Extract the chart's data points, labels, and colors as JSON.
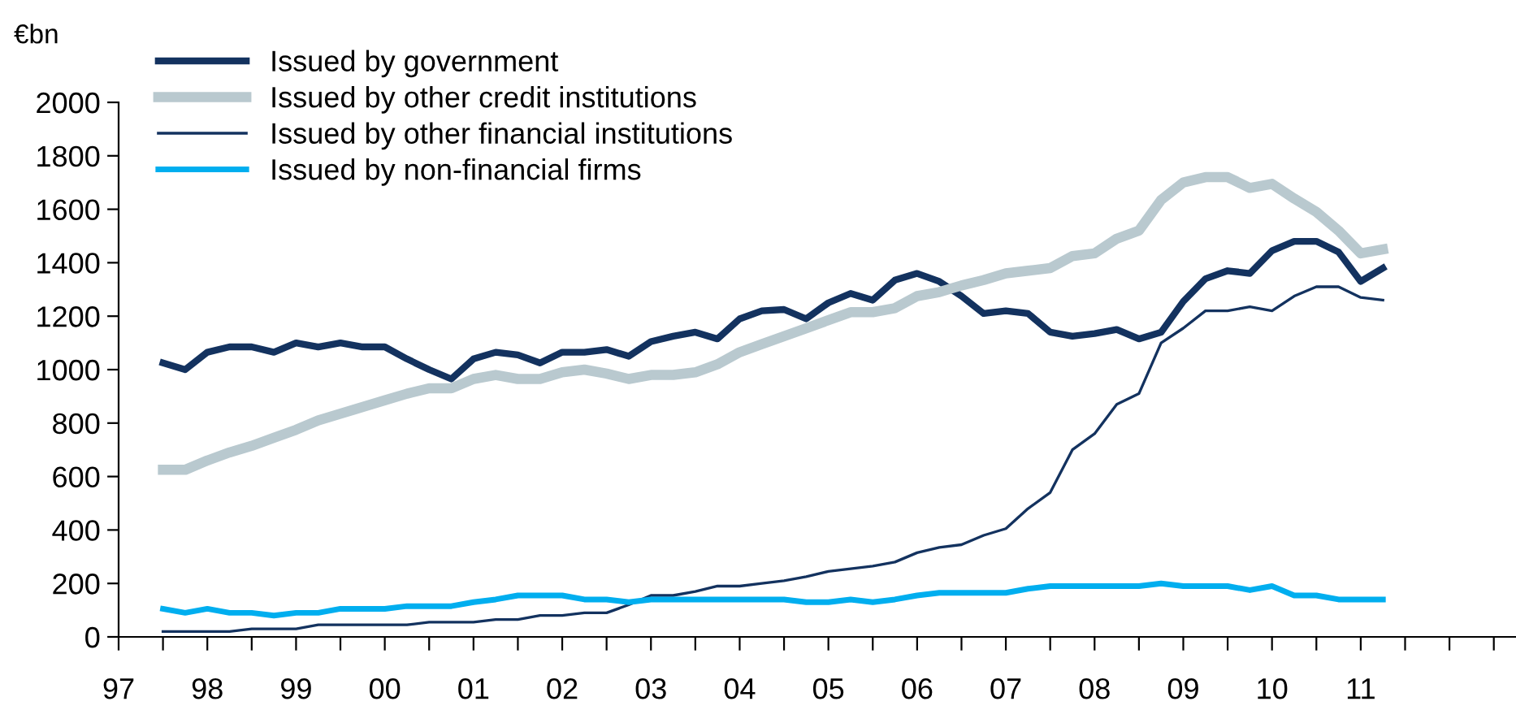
{
  "chart_data": {
    "type": "line",
    "ylabel": "€bn",
    "x": [
      1997.5,
      1997.75,
      1998,
      1998.25,
      1998.5,
      1998.75,
      1999,
      1999.25,
      1999.5,
      1999.75,
      2000,
      2000.25,
      2000.5,
      2000.75,
      2001,
      2001.25,
      2001.5,
      2001.75,
      2002,
      2002.25,
      2002.5,
      2002.75,
      2003,
      2003.25,
      2003.5,
      2003.75,
      2004,
      2004.25,
      2004.5,
      2004.75,
      2005,
      2005.25,
      2005.5,
      2005.75,
      2006,
      2006.25,
      2006.5,
      2006.75,
      2007,
      2007.25,
      2007.5,
      2007.75,
      2008,
      2008.25,
      2008.5,
      2008.75,
      2009,
      2009.25,
      2009.5,
      2009.75,
      2010,
      2010.25,
      2010.5,
      2010.75,
      2011,
      2011.25
    ],
    "series": [
      {
        "name": "Issued by government",
        "color": "#13325f",
        "values": [
          1025,
          1000,
          1065,
          1085,
          1085,
          1065,
          1100,
          1085,
          1100,
          1085,
          1085,
          1040,
          1000,
          965,
          1040,
          1065,
          1055,
          1025,
          1065,
          1065,
          1075,
          1050,
          1105,
          1125,
          1140,
          1115,
          1190,
          1220,
          1225,
          1190,
          1250,
          1285,
          1260,
          1335,
          1360,
          1330,
          1275,
          1210,
          1220,
          1210,
          1140,
          1125,
          1135,
          1150,
          1115,
          1140,
          1255,
          1340,
          1370,
          1360,
          1445,
          1480,
          1480,
          1440,
          1330,
          1380
        ]
      },
      {
        "name": "Issued by other credit institutions",
        "color": "#b9c9cf",
        "values": [
          625,
          625,
          660,
          690,
          715,
          745,
          775,
          810,
          835,
          860,
          885,
          910,
          930,
          930,
          965,
          980,
          965,
          965,
          990,
          1000,
          985,
          965,
          980,
          980,
          990,
          1020,
          1065,
          1095,
          1125,
          1155,
          1185,
          1215,
          1215,
          1230,
          1275,
          1290,
          1315,
          1335,
          1360,
          1370,
          1380,
          1425,
          1435,
          1490,
          1520,
          1635,
          1700,
          1720,
          1720,
          1680,
          1695,
          1640,
          1590,
          1520,
          1435,
          1450
        ]
      },
      {
        "name": "Issued by other financial institutions",
        "color": "#13325f",
        "values": [
          20,
          20,
          20,
          20,
          30,
          30,
          30,
          45,
          45,
          45,
          45,
          45,
          55,
          55,
          55,
          65,
          65,
          80,
          80,
          90,
          90,
          120,
          155,
          155,
          170,
          190,
          190,
          200,
          210,
          225,
          245,
          255,
          265,
          280,
          315,
          335,
          345,
          380,
          405,
          480,
          540,
          700,
          760,
          870,
          910,
          1100,
          1155,
          1220,
          1220,
          1235,
          1220,
          1275,
          1310,
          1310,
          1270,
          1260
        ]
      },
      {
        "name": "Issued by non-financial firms",
        "color": "#00aeef",
        "values": [
          105,
          90,
          105,
          90,
          90,
          80,
          90,
          90,
          105,
          105,
          105,
          115,
          115,
          115,
          130,
          140,
          155,
          155,
          155,
          140,
          140,
          130,
          140,
          140,
          140,
          140,
          140,
          140,
          140,
          130,
          130,
          140,
          130,
          140,
          155,
          165,
          165,
          165,
          165,
          180,
          190,
          190,
          190,
          190,
          190,
          200,
          190,
          190,
          190,
          175,
          190,
          155,
          155,
          140,
          140,
          140
        ]
      }
    ],
    "xlim": [
      1997,
      2012.75
    ],
    "xticks": [
      {
        "value": 1997,
        "label": "97"
      },
      {
        "value": 1997.5,
        "label": null
      },
      {
        "value": 1998,
        "label": "98"
      },
      {
        "value": 1998.5,
        "label": null
      },
      {
        "value": 1999,
        "label": "99"
      },
      {
        "value": 1999.5,
        "label": null
      },
      {
        "value": 2000,
        "label": "00"
      },
      {
        "value": 2000.5,
        "label": null
      },
      {
        "value": 2001,
        "label": "01"
      },
      {
        "value": 2001.5,
        "label": null
      },
      {
        "value": 2002,
        "label": "02"
      },
      {
        "value": 2002.5,
        "label": null
      },
      {
        "value": 2003,
        "label": "03"
      },
      {
        "value": 2003.5,
        "label": null
      },
      {
        "value": 2004,
        "label": "04"
      },
      {
        "value": 2004.5,
        "label": null
      },
      {
        "value": 2005,
        "label": "05"
      },
      {
        "value": 2005.5,
        "label": null
      },
      {
        "value": 2006,
        "label": "06"
      },
      {
        "value": 2006.5,
        "label": null
      },
      {
        "value": 2007,
        "label": "07"
      },
      {
        "value": 2007.5,
        "label": null
      },
      {
        "value": 2008,
        "label": "08"
      },
      {
        "value": 2008.5,
        "label": null
      },
      {
        "value": 2009,
        "label": "09"
      },
      {
        "value": 2009.5,
        "label": null
      },
      {
        "value": 2010,
        "label": "10"
      },
      {
        "value": 2010.5,
        "label": null
      },
      {
        "value": 2011,
        "label": "11"
      },
      {
        "value": 2011.5,
        "label": null
      },
      {
        "value": 2012,
        "label": null
      },
      {
        "value": 2012.5,
        "label": null
      }
    ],
    "ylim": [
      0,
      2000
    ],
    "yticks": [
      0,
      200,
      400,
      600,
      800,
      1000,
      1200,
      1400,
      1600,
      1800,
      2000
    ],
    "grid": false,
    "legend": "top left",
    "marker": "none",
    "line_style": "solid"
  }
}
